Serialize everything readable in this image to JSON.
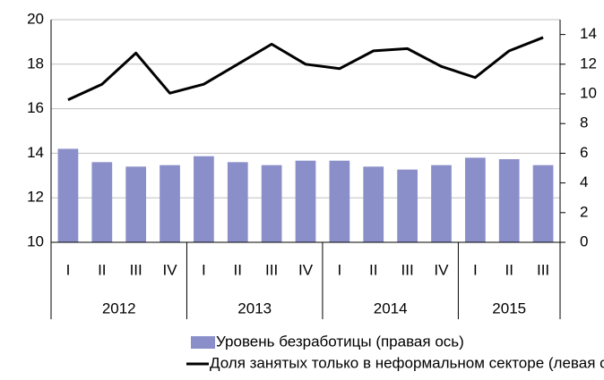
{
  "chart_data": {
    "type": "bar-line",
    "categories": [
      "I",
      "II",
      "III",
      "IV",
      "I",
      "II",
      "III",
      "IV",
      "I",
      "II",
      "III",
      "IV",
      "I",
      "II",
      "III"
    ],
    "groups": [
      {
        "label": "2012",
        "count": 4
      },
      {
        "label": "2013",
        "count": 4
      },
      {
        "label": "2014",
        "count": 4
      },
      {
        "label": "2015",
        "count": 3
      }
    ],
    "series": [
      {
        "name": "Уровень безработицы (правая ось)",
        "type": "bar",
        "axis": "y2",
        "color": "#8b8fc9",
        "values": [
          6.3,
          5.4,
          5.1,
          5.2,
          5.8,
          5.4,
          5.2,
          5.5,
          5.5,
          5.1,
          4.9,
          5.2,
          5.7,
          5.6,
          5.2
        ]
      },
      {
        "name": "Доля занятых только в неформальном секторе (левая ось)",
        "type": "line",
        "axis": "y",
        "color": "#000000",
        "values": [
          16.4,
          17.1,
          18.5,
          16.7,
          17.1,
          18.0,
          18.9,
          18.0,
          17.8,
          18.6,
          18.7,
          17.9,
          17.4,
          18.6,
          19.2
        ]
      }
    ],
    "ylim": [
      10,
      20
    ],
    "yticks": [
      10,
      12,
      14,
      16,
      18,
      20
    ],
    "y2lim": [
      0,
      15
    ],
    "y2ticks": [
      0,
      2,
      4,
      6,
      8,
      10,
      12,
      14
    ],
    "grid": true,
    "legend": "bottom"
  }
}
